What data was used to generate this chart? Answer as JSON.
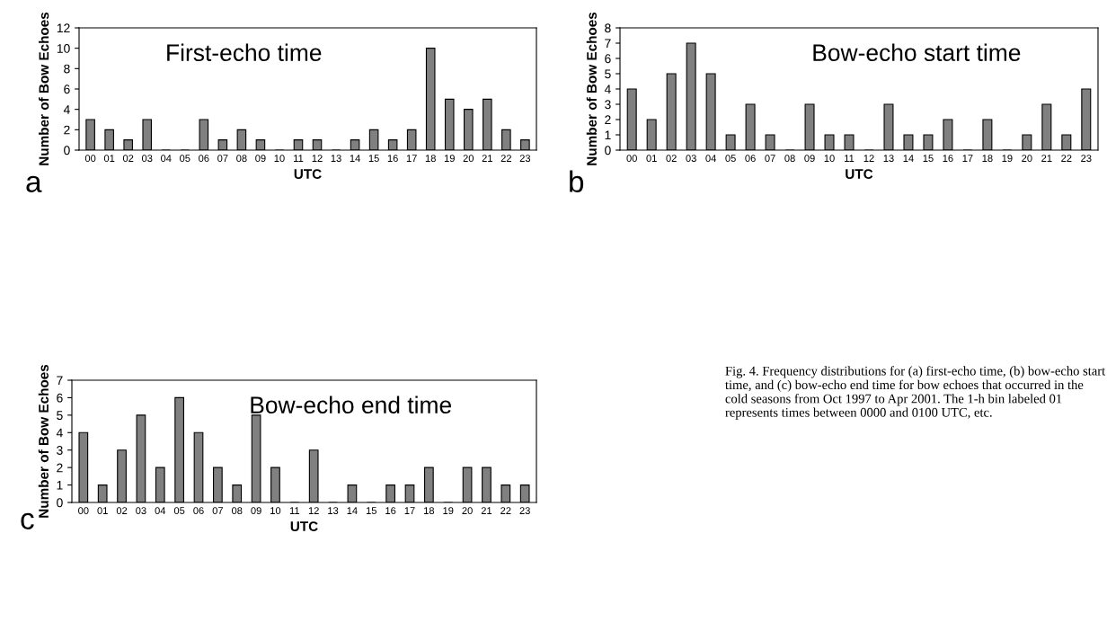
{
  "chart_data": [
    {
      "type": "bar",
      "title": "First-echo time",
      "xlabel": "UTC",
      "ylabel": "Number of Bow Echoes",
      "annotations": [
        "a"
      ],
      "color": "#808080",
      "grid": false,
      "categories": [
        "00",
        "01",
        "02",
        "03",
        "04",
        "05",
        "06",
        "07",
        "08",
        "09",
        "10",
        "11",
        "12",
        "13",
        "14",
        "15",
        "16",
        "17",
        "18",
        "19",
        "20",
        "21",
        "22",
        "23"
      ],
      "values": [
        3,
        2,
        1,
        3,
        0,
        0,
        3,
        1,
        2,
        1,
        0,
        1,
        1,
        0,
        1,
        2,
        1,
        2,
        10,
        5,
        4,
        5,
        2,
        1
      ],
      "ylim": [
        0,
        12
      ],
      "yticks": [
        0,
        2,
        4,
        6,
        8,
        10,
        12
      ]
    },
    {
      "type": "bar",
      "title": "Bow-echo start time",
      "xlabel": "UTC",
      "ylabel": "Number of Bow Echoes",
      "annotations": [
        "b"
      ],
      "color": "#808080",
      "grid": false,
      "categories": [
        "00",
        "01",
        "02",
        "03",
        "04",
        "05",
        "06",
        "07",
        "08",
        "09",
        "10",
        "11",
        "12",
        "13",
        "14",
        "15",
        "16",
        "17",
        "18",
        "19",
        "20",
        "21",
        "22",
        "23"
      ],
      "values": [
        4,
        2,
        5,
        7,
        5,
        1,
        3,
        1,
        0,
        3,
        1,
        1,
        0,
        3,
        1,
        1,
        2,
        0,
        2,
        0,
        1,
        3,
        1,
        4
      ],
      "ylim": [
        0,
        8
      ],
      "yticks": [
        0,
        1,
        2,
        3,
        4,
        5,
        6,
        7,
        8
      ]
    },
    {
      "type": "bar",
      "title": "Bow-echo end time",
      "xlabel": "UTC",
      "ylabel": "Number of Bow Echoes",
      "annotations": [
        "c",
        "Fig. 4. Frequency distributions for (a) first-echo time, (b) bow-echo start time, and (c) bow-echo end time for bow echoes that occurred in the cold seasons from Oct 1997 to Apr 2001. The 1-h bin labeled 01 represents times between 0000 and 0100 UTC, etc."
      ],
      "color": "#808080",
      "grid": false,
      "categories": [
        "00",
        "01",
        "02",
        "03",
        "04",
        "05",
        "06",
        "07",
        "08",
        "09",
        "10",
        "11",
        "12",
        "13",
        "14",
        "15",
        "16",
        "17",
        "18",
        "19",
        "20",
        "21",
        "22",
        "23"
      ],
      "values": [
        4,
        1,
        3,
        5,
        2,
        6,
        4,
        2,
        1,
        5,
        2,
        0,
        3,
        0,
        1,
        0,
        1,
        1,
        2,
        0,
        2,
        2,
        1,
        1
      ],
      "ylim": [
        0,
        7
      ],
      "yticks": [
        0,
        1,
        2,
        3,
        4,
        5,
        6,
        7
      ]
    }
  ]
}
